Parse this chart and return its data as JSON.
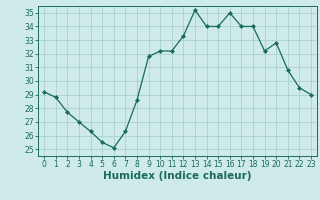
{
  "x": [
    0,
    1,
    2,
    3,
    4,
    5,
    6,
    7,
    8,
    9,
    10,
    11,
    12,
    13,
    14,
    15,
    16,
    17,
    18,
    19,
    20,
    21,
    22,
    23
  ],
  "y": [
    29.2,
    28.8,
    27.7,
    27.0,
    26.3,
    25.5,
    25.1,
    26.3,
    28.6,
    31.8,
    32.2,
    32.2,
    33.3,
    35.2,
    34.0,
    34.0,
    35.0,
    34.0,
    34.0,
    32.2,
    32.8,
    30.8,
    29.5,
    29.0
  ],
  "line_color": "#1a6b5a",
  "marker": "D",
  "marker_size": 2.0,
  "bg_color": "#ceeaea",
  "grid_color": "#add4d4",
  "title": "",
  "xlabel": "Humidex (Indice chaleur)",
  "ylabel": "",
  "xlim": [
    -0.5,
    23.5
  ],
  "ylim": [
    24.5,
    35.5
  ],
  "yticks": [
    25,
    26,
    27,
    28,
    29,
    30,
    31,
    32,
    33,
    34,
    35
  ],
  "xticks": [
    0,
    1,
    2,
    3,
    4,
    5,
    6,
    7,
    8,
    9,
    10,
    11,
    12,
    13,
    14,
    15,
    16,
    17,
    18,
    19,
    20,
    21,
    22,
    23
  ],
  "tick_color": "#1a6b5a",
  "label_color": "#1a6b5a",
  "tick_fontsize": 5.5,
  "label_fontsize": 7.5
}
